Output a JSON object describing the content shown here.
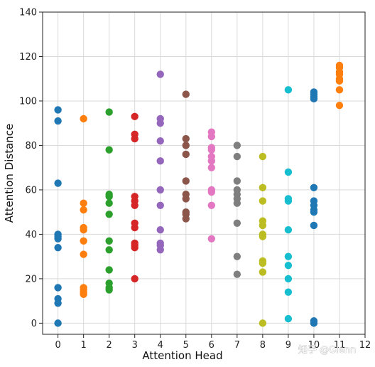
{
  "chart_data": {
    "type": "scatter",
    "title": "",
    "xlabel": "Attention Head",
    "ylabel": "Attention Distance",
    "xlim": [
      -0.6,
      12
    ],
    "ylim": [
      -5,
      140
    ],
    "xticks": [
      0,
      1,
      2,
      3,
      4,
      5,
      6,
      7,
      8,
      9,
      10,
      11,
      12
    ],
    "yticks": [
      0,
      20,
      40,
      60,
      80,
      100,
      120,
      140
    ],
    "grid": true,
    "series": [
      {
        "x": 0,
        "color": "#1f77b4",
        "values": [
          96,
          91,
          63,
          40,
          39,
          38,
          34,
          16,
          11,
          9,
          0
        ]
      },
      {
        "x": 1,
        "color": "#ff7f0e",
        "values": [
          92,
          54,
          51,
          43,
          42,
          37,
          31,
          16,
          15,
          14,
          13
        ]
      },
      {
        "x": 2,
        "color": "#2ca02c",
        "values": [
          95,
          78,
          58,
          57,
          54,
          49,
          37,
          33,
          24,
          18,
          16,
          15
        ]
      },
      {
        "x": 3,
        "color": "#d62728",
        "values": [
          93,
          85,
          83,
          57,
          55,
          53,
          45,
          43,
          36,
          35,
          34,
          20
        ]
      },
      {
        "x": 4,
        "color": "#9467bd",
        "values": [
          112,
          92,
          90,
          82,
          73,
          60,
          53,
          42,
          36,
          35,
          33
        ]
      },
      {
        "x": 5,
        "color": "#8c564b",
        "values": [
          103,
          83,
          80,
          76,
          64,
          58,
          56,
          50,
          49,
          47
        ]
      },
      {
        "x": 6,
        "color": "#e377c2",
        "values": [
          86,
          84,
          79,
          78,
          75,
          73,
          70,
          60,
          59,
          53,
          38
        ]
      },
      {
        "x": 7,
        "color": "#7f7f7f",
        "values": [
          80,
          75,
          64,
          60,
          58,
          56,
          54,
          45,
          30,
          22
        ]
      },
      {
        "x": 8,
        "color": "#bcbd22",
        "values": [
          75,
          61,
          55,
          46,
          44,
          40,
          39,
          28,
          27,
          23,
          0
        ]
      },
      {
        "x": 9,
        "color": "#17becf",
        "values": [
          105,
          68,
          56,
          55,
          42,
          30,
          26,
          20,
          14,
          2
        ]
      },
      {
        "x": 10,
        "color": "#1f77b4",
        "values": [
          104,
          103,
          102,
          101,
          61,
          55,
          53,
          51,
          50,
          44,
          1,
          0
        ]
      },
      {
        "x": 11,
        "color": "#ff7f0e",
        "values": [
          116,
          115,
          113,
          112,
          110,
          109,
          105,
          98
        ]
      }
    ]
  },
  "watermark": "知乎 @Glenn"
}
